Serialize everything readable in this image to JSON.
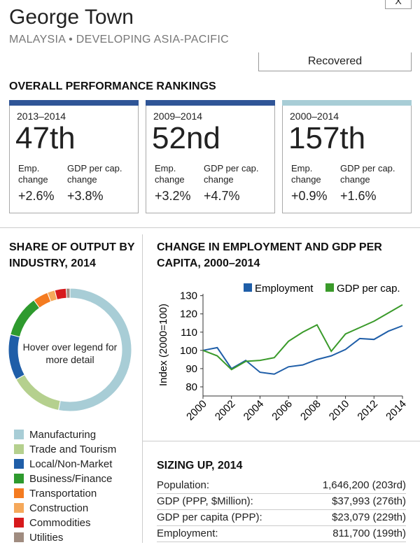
{
  "header": {
    "title": "George Town",
    "subtitle": "MALAYSIA • DEVELOPING ASIA-PACIFIC",
    "status": "Recovered",
    "close": "X"
  },
  "rankings": {
    "title": "OVERALL PERFORMANCE RANKINGS",
    "boxes": [
      {
        "period": "2013–2014",
        "rank": "47th",
        "emp_label": "Emp. change",
        "gdp_label": "GDP per cap. change",
        "emp": "+2.6%",
        "gdp": "+3.8%",
        "color": "#2f5597"
      },
      {
        "period": "2009–2014",
        "rank": "52nd",
        "emp_label": "Emp. change",
        "gdp_label": "GDP per cap. change",
        "emp": "+3.2%",
        "gdp": "+4.7%",
        "color": "#2f5597"
      },
      {
        "period": "2000–2014",
        "rank": "157th",
        "emp_label": "Emp. change",
        "gdp_label": "GDP per cap. change",
        "emp": "+0.9%",
        "gdp": "+1.6%",
        "color": "#a8cdd6"
      }
    ]
  },
  "chart_data": [
    {
      "type": "pie",
      "title": "SHARE OF OUTPUT BY INDUSTRY, 2014",
      "center_text": "Hover over legend for more detail",
      "categories": [
        "Manufacturing",
        "Trade and Tourism",
        "Local/Non-Market",
        "Business/Finance",
        "Transportation",
        "Construction",
        "Commodities",
        "Utilities"
      ],
      "values": [
        53,
        14,
        12,
        11,
        4,
        2,
        3,
        1
      ],
      "colors": [
        "#a8cdd6",
        "#b5d08e",
        "#1f5ea8",
        "#2e9a2e",
        "#f47b20",
        "#f5a85a",
        "#d7191c",
        "#a08c80"
      ]
    },
    {
      "type": "line",
      "title": "CHANGE IN EMPLOYMENT AND GDP PER CAPITA, 2000–2014",
      "y_label": "Index (2000=100)",
      "x": [
        2000,
        2001,
        2002,
        2003,
        2004,
        2005,
        2006,
        2007,
        2008,
        2009,
        2010,
        2011,
        2012,
        2013,
        2014
      ],
      "series": [
        {
          "name": "Employment",
          "color": "#1f5ea8",
          "values": [
            100,
            101.5,
            90,
            94.5,
            88,
            87,
            91,
            92,
            95,
            97,
            100.5,
            106.5,
            106,
            110.5,
            113.5
          ]
        },
        {
          "name": "GDP per cap.",
          "color": "#3a9a2a",
          "values": [
            100,
            97,
            89.5,
            94,
            94.5,
            96,
            105,
            110,
            114,
            99.5,
            109,
            112.5,
            116,
            120.5,
            125
          ]
        }
      ],
      "xlim": [
        2000,
        2014
      ],
      "ylim": [
        75,
        131
      ],
      "xticks": [
        2000,
        2002,
        2004,
        2006,
        2008,
        2010,
        2012,
        2014
      ],
      "yticks": [
        80,
        90,
        100,
        110,
        120,
        130
      ],
      "legend": "top"
    }
  ],
  "sizing": {
    "title": "SIZING UP, 2014",
    "rows": [
      [
        "Population:",
        "1,646,200 (203rd)"
      ],
      [
        "GDP (PPP, $Million):",
        "$37,993 (276th)"
      ],
      [
        "GDP per capita (PPP):",
        "$23,079 (229th)"
      ],
      [
        "Employment:",
        "811,700 (199th)"
      ]
    ]
  }
}
